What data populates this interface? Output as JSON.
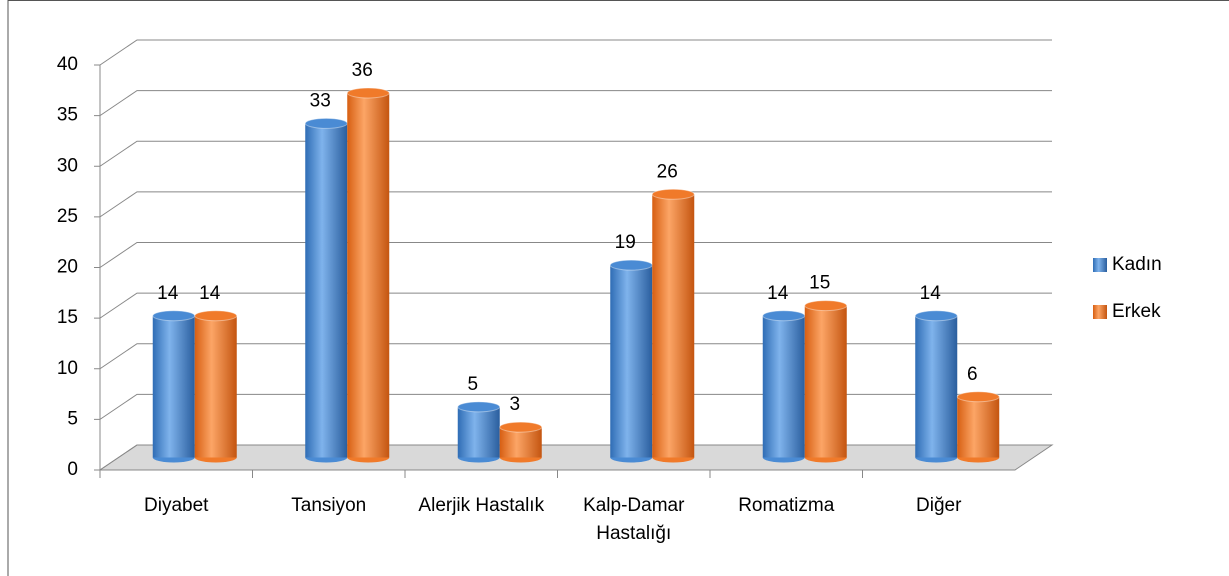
{
  "chart_data": {
    "type": "bar3d",
    "categories": [
      "Diyabet",
      "Tansiyon",
      "Alerjik Hastalık",
      "Kalp-Damar Hastalığı",
      "Romatizma",
      "Diğer"
    ],
    "series": [
      {
        "name": "Kadın",
        "color": "#4a8bd4",
        "values": [
          14,
          33,
          5,
          19,
          14,
          14
        ]
      },
      {
        "name": "Erkek",
        "color": "#f07a2a",
        "values": [
          14,
          36,
          3,
          26,
          15,
          6
        ]
      }
    ],
    "ylim": [
      0,
      40
    ],
    "yticks": [
      0,
      5,
      10,
      15,
      20,
      25,
      30,
      35,
      40
    ],
    "grid": true,
    "legend": "right"
  }
}
